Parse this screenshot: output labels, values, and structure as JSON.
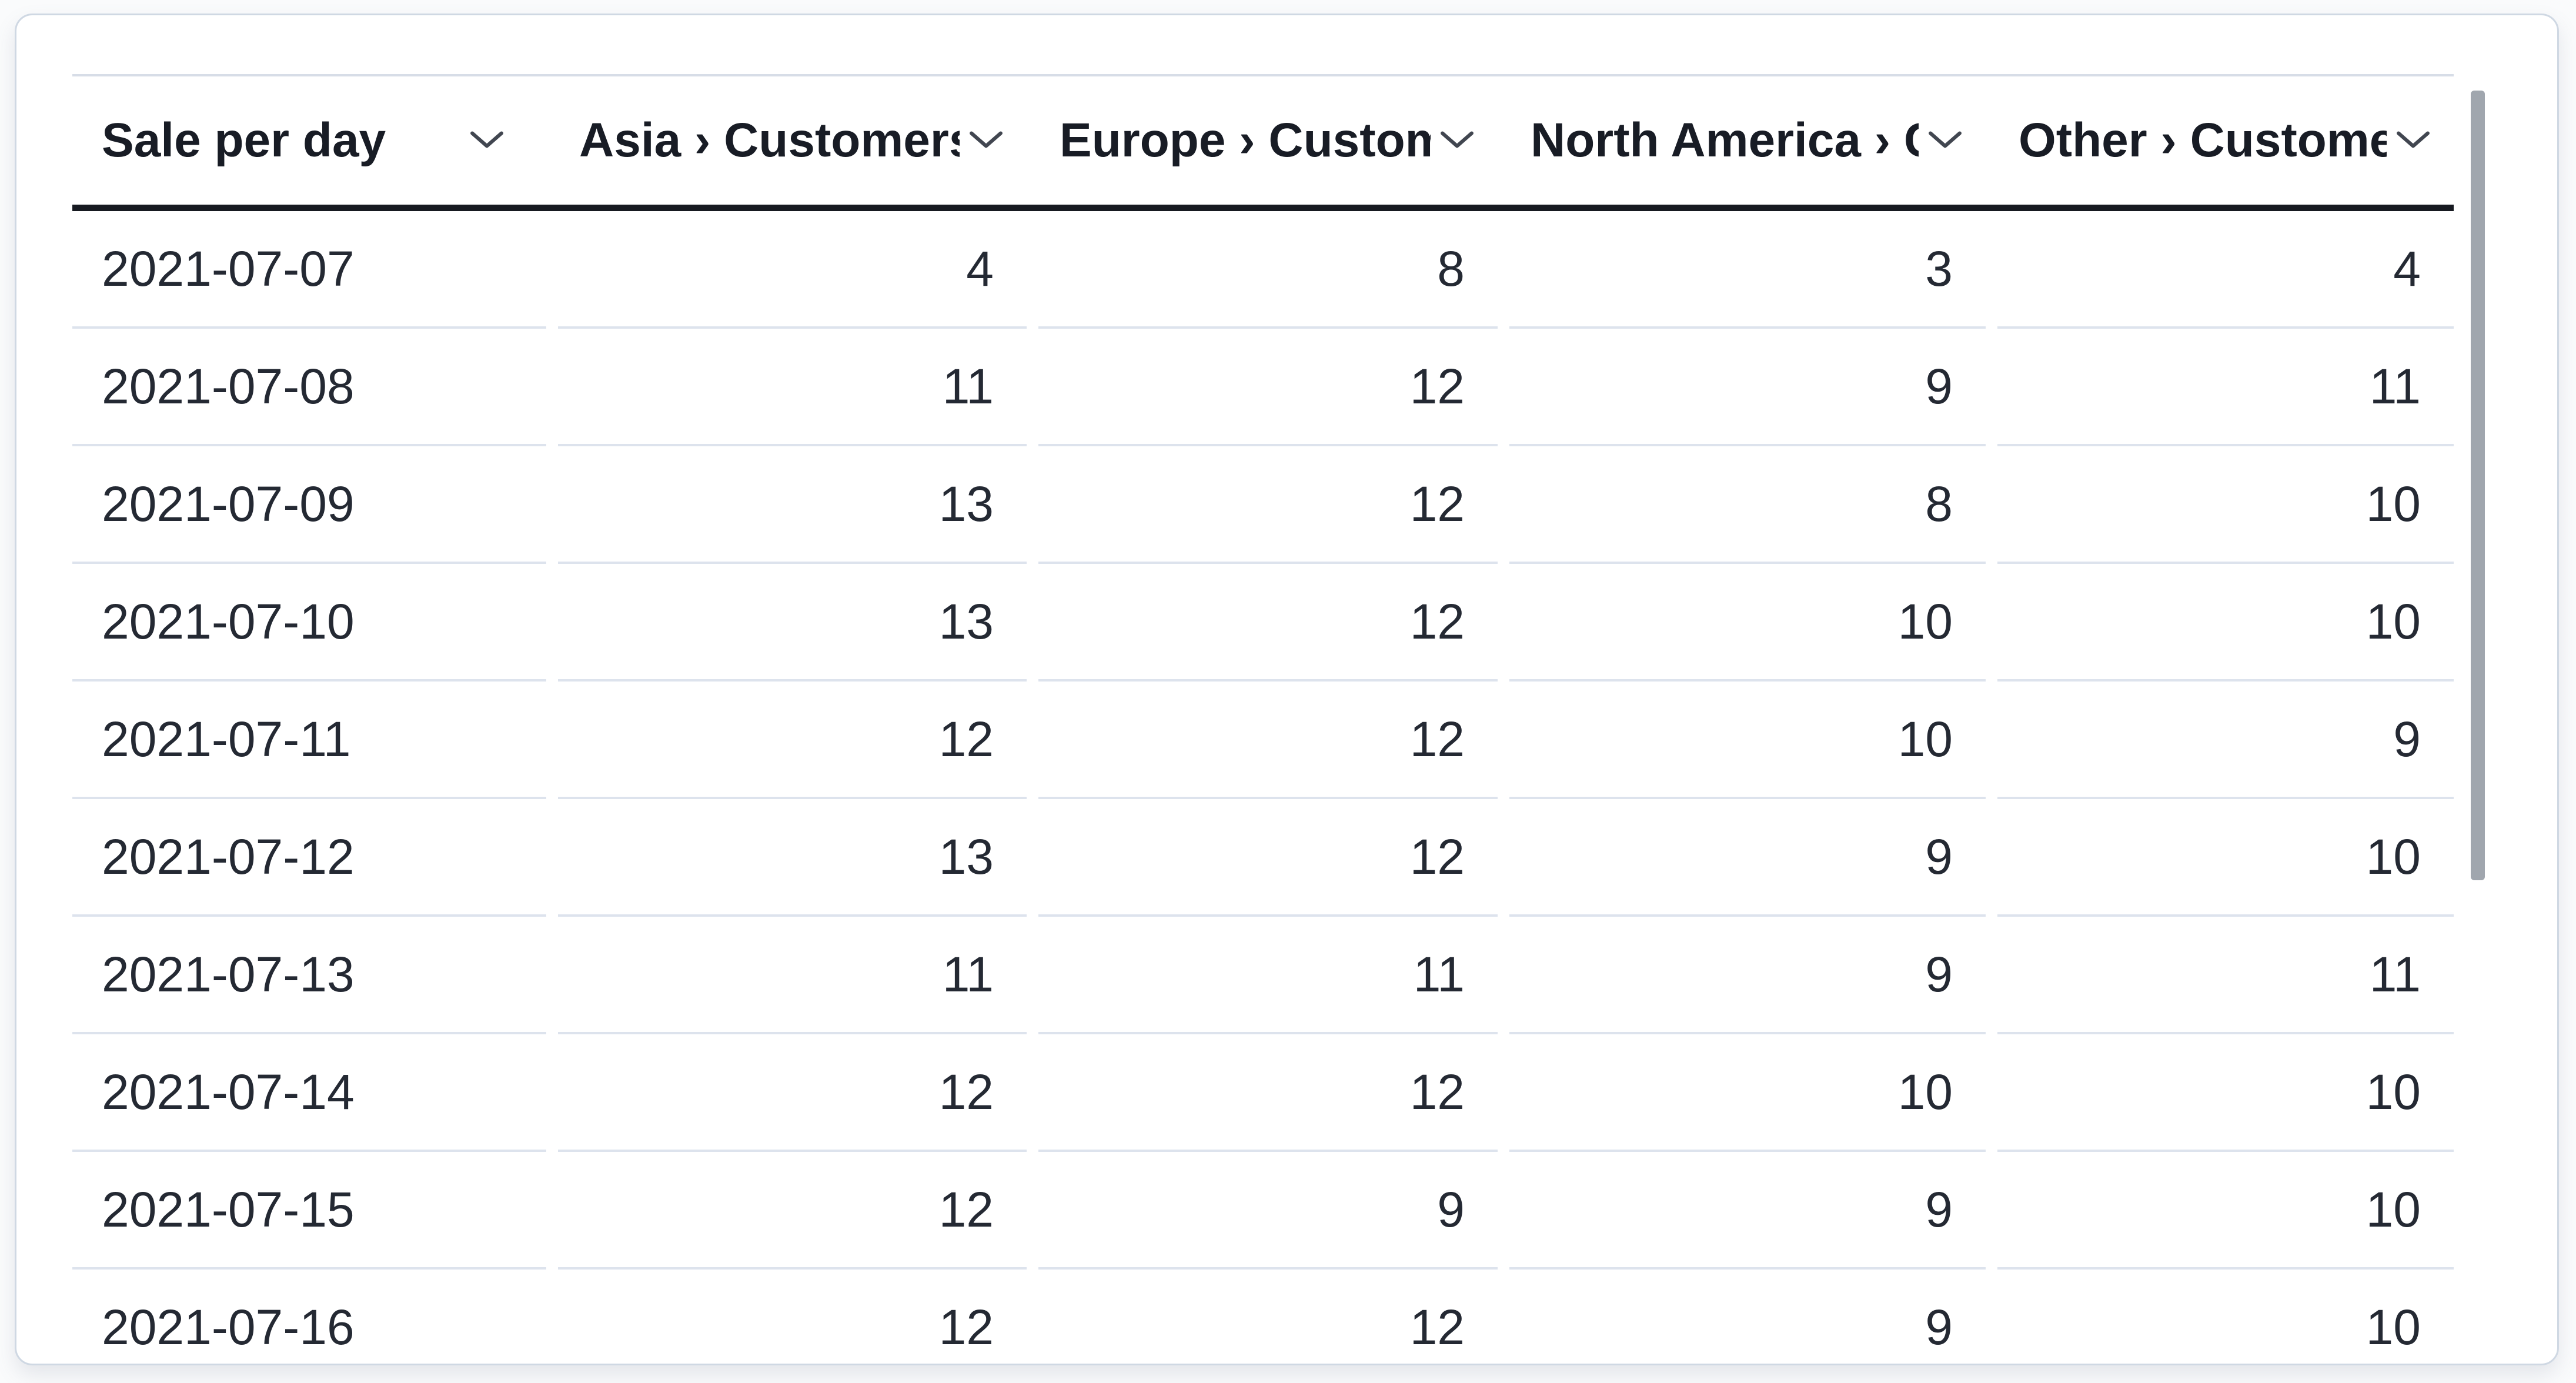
{
  "table": {
    "columns": [
      {
        "id": "date",
        "label": "Sale per day",
        "align": "left"
      },
      {
        "id": "asia",
        "label": "Asia › Customers",
        "align": "right"
      },
      {
        "id": "europe",
        "label": "Europe › Customers",
        "align": "right"
      },
      {
        "id": "north-america",
        "label": "North America › Customers",
        "align": "right"
      },
      {
        "id": "other",
        "label": "Other › Customers",
        "align": "right"
      }
    ],
    "rows": [
      {
        "date": "2021-07-07",
        "values": [
          4,
          8,
          3,
          4
        ]
      },
      {
        "date": "2021-07-08",
        "values": [
          11,
          12,
          9,
          11
        ]
      },
      {
        "date": "2021-07-09",
        "values": [
          13,
          12,
          8,
          10
        ]
      },
      {
        "date": "2021-07-10",
        "values": [
          13,
          12,
          10,
          10
        ]
      },
      {
        "date": "2021-07-11",
        "values": [
          12,
          12,
          10,
          9
        ]
      },
      {
        "date": "2021-07-12",
        "values": [
          13,
          12,
          9,
          10
        ]
      },
      {
        "date": "2021-07-13",
        "values": [
          11,
          11,
          9,
          11
        ]
      },
      {
        "date": "2021-07-14",
        "values": [
          12,
          12,
          10,
          10
        ]
      },
      {
        "date": "2021-07-15",
        "values": [
          12,
          9,
          9,
          10
        ]
      },
      {
        "date": "2021-07-16",
        "values": [
          12,
          12,
          9,
          10
        ]
      }
    ]
  },
  "icons": {
    "header_sort": "chevron-down-icon"
  },
  "scrollbar": {
    "orientation": "vertical",
    "visible": true
  },
  "colors": {
    "page_bg": "#fafbfc",
    "card_bg": "#ffffff",
    "card_border": "#cfd8e3",
    "header_text": "#181c25",
    "body_text": "#242933",
    "header_rule": "#171a21",
    "top_rule": "#d7dde7",
    "row_divider": "#dde3ed",
    "chevron": "#414650",
    "scrollbar_thumb": "#a0a6ae"
  }
}
